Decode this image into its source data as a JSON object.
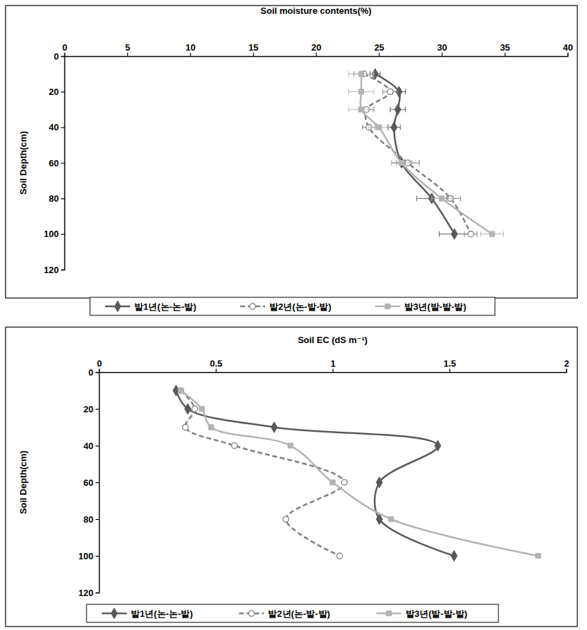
{
  "chart_data": [
    {
      "type": "line",
      "x_label": "Soil moisture contents(%)",
      "y_label": "Soil Depth(cm)",
      "orientation": "horizontal",
      "y": [
        10,
        20,
        30,
        40,
        60,
        80,
        100
      ],
      "xlim": [
        0,
        40
      ],
      "xticks": [
        0,
        5,
        10,
        15,
        20,
        25,
        30,
        35,
        40
      ],
      "ylim": [
        0,
        120
      ],
      "yticks": [
        0,
        20,
        40,
        60,
        80,
        100,
        120
      ],
      "grid": false,
      "legend": "bottom",
      "series": [
        {
          "name": "밭1년(논-논-밭)",
          "color": "#595959",
          "marker": "diamond",
          "line_style": "solid",
          "values": [
            24.7,
            26.6,
            26.5,
            26.2,
            26.8,
            29.2,
            31.0
          ],
          "errors": [
            0.4,
            0.5,
            0.6,
            0.5,
            0.8,
            1.2,
            1.2
          ]
        },
        {
          "name": "밭2년(논-밭-밭)",
          "color": "#7f7f7f",
          "marker": "circle",
          "line_style": "dashed",
          "values": [
            23.8,
            25.9,
            24.0,
            24.2,
            27.3,
            30.7,
            32.3
          ],
          "errors": [
            0.8,
            0.6,
            0.6,
            0.5,
            0.9,
            0.8,
            0.5
          ]
        },
        {
          "name": "밭3년(밭-밭-밭)",
          "color": "#b3b3b3",
          "marker": "square",
          "line_style": "solid",
          "values": [
            23.6,
            23.6,
            23.6,
            25.0,
            26.8,
            30.0,
            34.0
          ],
          "errors": [
            1.0,
            1.0,
            1.0,
            0.8,
            0.8,
            0.8,
            0.9
          ]
        }
      ]
    },
    {
      "type": "line",
      "x_label": "Soil EC (dS m⁻¹)",
      "y_label": "Soil Depth(cm)",
      "orientation": "horizontal",
      "y": [
        10,
        20,
        30,
        40,
        60,
        80,
        100
      ],
      "xlim": [
        0,
        2
      ],
      "xticks": [
        0,
        0.5,
        1,
        1.5,
        2
      ],
      "ylim": [
        0,
        120
      ],
      "yticks": [
        0,
        20,
        40,
        60,
        80,
        100,
        120
      ],
      "grid": false,
      "legend": "bottom",
      "series": [
        {
          "name": "밭1년(논-논-밭)",
          "color": "#595959",
          "marker": "diamond",
          "line_style": "solid",
          "values": [
            0.33,
            0.38,
            0.75,
            1.45,
            1.2,
            1.2,
            1.52
          ]
        },
        {
          "name": "밭2년(논-밭-밭)",
          "color": "#7f7f7f",
          "marker": "circle",
          "line_style": "dashed",
          "values": [
            0.35,
            0.41,
            0.37,
            0.58,
            1.05,
            0.8,
            1.03
          ]
        },
        {
          "name": "밭3년(밭-밭-밭)",
          "color": "#b3b3b3",
          "marker": "square",
          "line_style": "solid",
          "values": [
            0.35,
            0.44,
            0.48,
            0.82,
            1.0,
            1.25,
            1.88
          ]
        }
      ]
    }
  ]
}
